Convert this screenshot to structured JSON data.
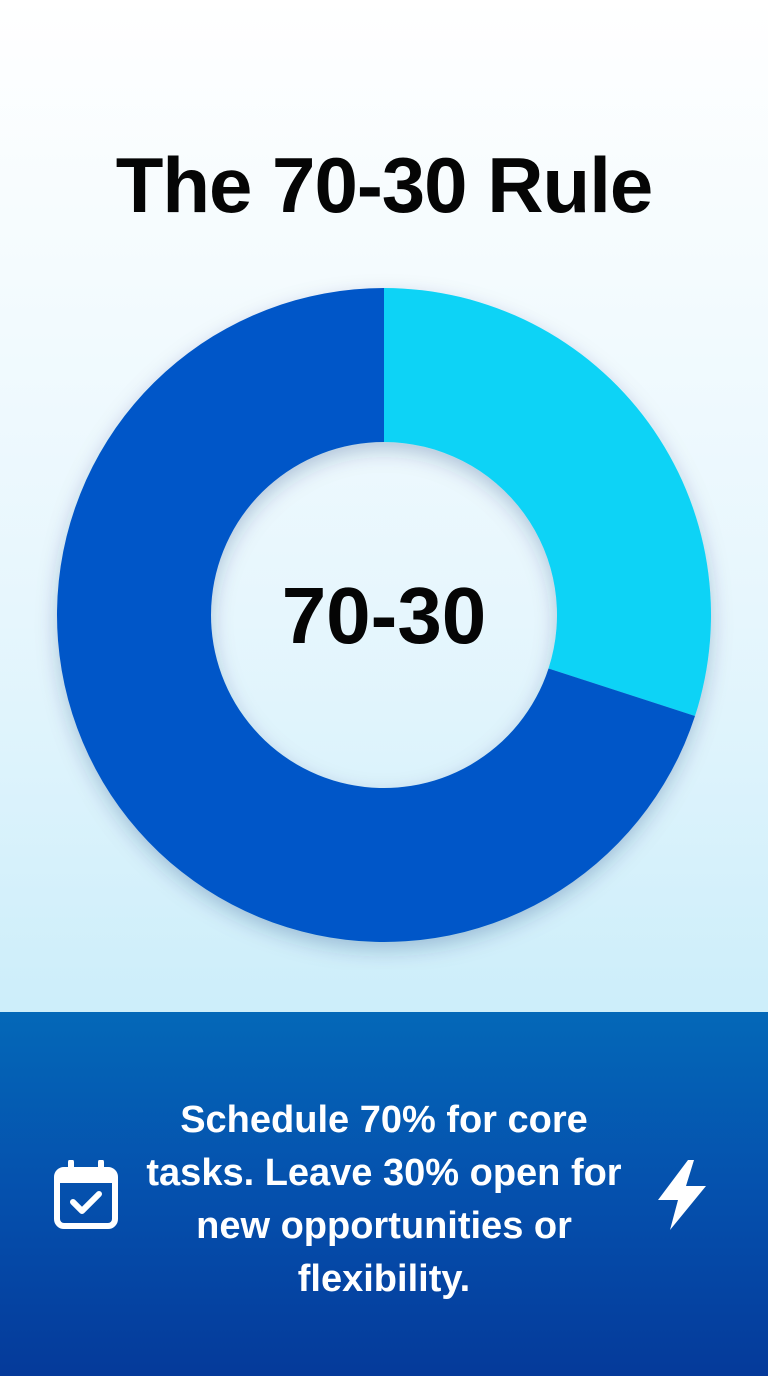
{
  "title": "The 70-30 Rule",
  "chart_data": {
    "type": "pie",
    "donut": true,
    "categories": [
      "Core tasks",
      "New opportunities / flexibility"
    ],
    "values": [
      70,
      30
    ],
    "colors": [
      "#0057c8",
      "#0bd3f6"
    ],
    "center_label": "70-30",
    "legend": "none"
  },
  "footer": {
    "text": "Schedule 70% for core tasks. Leave 30% open for new opportunities or flexibility.",
    "left_icon": "calendar-check-icon",
    "right_icon": "lightning-bolt-icon"
  }
}
